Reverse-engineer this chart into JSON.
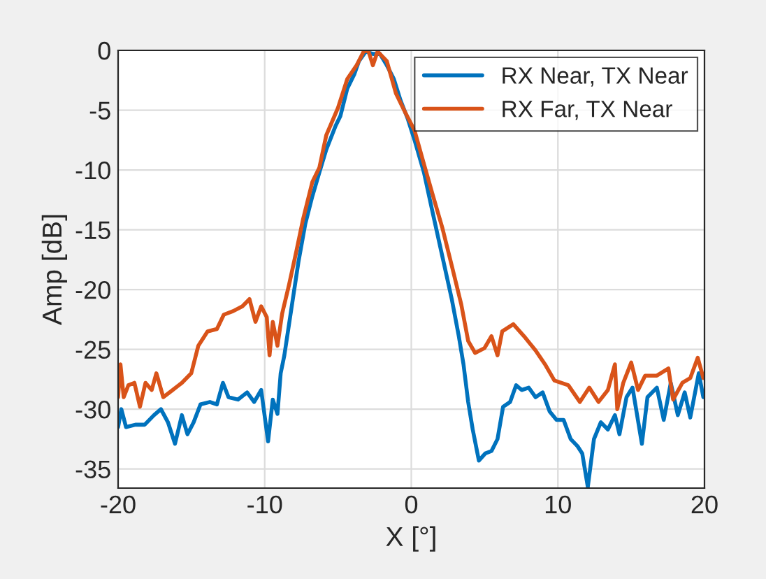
{
  "chart_data": {
    "type": "line",
    "xlabel": "X [°]",
    "ylabel": "Amp [dB]",
    "xlim": [
      -20,
      20
    ],
    "ylim": [
      -36.6,
      0
    ],
    "xticks": [
      -20,
      -10,
      0,
      10,
      20
    ],
    "yticks": [
      {
        "value": -35,
        "label": "-35"
      },
      {
        "value": -30,
        "label": "-30"
      },
      {
        "value": -25,
        "label": "-25"
      },
      {
        "value": -20,
        "label": "-20"
      },
      {
        "value": -15,
        "label": "-15"
      },
      {
        "value": -10,
        "label": "-10"
      },
      {
        "value": -5,
        "label": "-5"
      },
      {
        "value": 0,
        "label": "0"
      }
    ],
    "grid": true,
    "legend": "top right",
    "line_style": "solid",
    "marker": "none",
    "series": [
      {
        "name": "RX Near, TX Near",
        "color": "#0072bd",
        "x": [
          -20,
          -19.78,
          -19.46,
          -18.82,
          -18.19,
          -17.55,
          -17.08,
          -16.6,
          -16.12,
          -15.65,
          -15.27,
          -14.85,
          -14.38,
          -13.74,
          -13.26,
          -12.85,
          -12.47,
          -11.83,
          -11.2,
          -10.72,
          -10.24,
          -9.77,
          -9.45,
          -9.13,
          -8.91,
          -8.66,
          -8.18,
          -7.7,
          -7.23,
          -6.75,
          -6.27,
          -5.8,
          -5.16,
          -4.84,
          -4.37,
          -3.89,
          -3.57,
          -3.1,
          -2.62,
          -2.14,
          -1.67,
          -1.19,
          -0.73,
          -0.25,
          0.22,
          0.86,
          1.49,
          2.13,
          2.76,
          3.24,
          3.56,
          3.88,
          4.19,
          4.61,
          5.05,
          5.47,
          5.88,
          6.26,
          6.74,
          7.15,
          7.53,
          8.01,
          8.48,
          8.96,
          9.44,
          9.91,
          10.39,
          10.87,
          11.34,
          11.66,
          12.04,
          12.46,
          12.93,
          13.41,
          13.89,
          14.2,
          14.68,
          15.09,
          15.73,
          16.11,
          16.75,
          17.22,
          17.7,
          18.18,
          18.65,
          19.03,
          19.61,
          19.92
        ],
        "values": [
          -31.5,
          -30,
          -31.5,
          -31.3,
          -31.3,
          -30.5,
          -30,
          -31.1,
          -32.9,
          -30.5,
          -32.1,
          -31.1,
          -29.6,
          -29.4,
          -29.6,
          -27.8,
          -29,
          -29.2,
          -28.6,
          -29.4,
          -28.4,
          -32.7,
          -29.2,
          -30.4,
          -27,
          -25.5,
          -21.6,
          -17.7,
          -14.5,
          -12.2,
          -10.2,
          -8.3,
          -6.3,
          -5.5,
          -3.2,
          -2,
          -0.9,
          -0.1,
          -0.3,
          -0.3,
          -1.25,
          -2.4,
          -4.2,
          -5.7,
          -7.5,
          -10.2,
          -13.75,
          -17.3,
          -20.8,
          -23.9,
          -26.25,
          -29.4,
          -31.7,
          -34.3,
          -33.7,
          -33.5,
          -32.5,
          -29.8,
          -29.4,
          -28,
          -28.4,
          -28.2,
          -29,
          -28.6,
          -30.2,
          -30.9,
          -30.9,
          -32.5,
          -33.1,
          -33.7,
          -36.5,
          -32.5,
          -31.1,
          -31.7,
          -30.5,
          -32.1,
          -29,
          -28.2,
          -32.9,
          -29,
          -28.2,
          -30.9,
          -27.8,
          -30.5,
          -28.6,
          -30.7,
          -27,
          -29
        ]
      },
      {
        "name": "RX Far, TX Near",
        "color": "#d95319",
        "x": [
          -20,
          -19.84,
          -19.62,
          -19.3,
          -18.89,
          -18.51,
          -18.13,
          -17.71,
          -17.39,
          -16.92,
          -16.28,
          -15.65,
          -15.01,
          -14.53,
          -13.9,
          -13.26,
          -12.79,
          -12.15,
          -11.52,
          -11.04,
          -10.63,
          -10.24,
          -9.86,
          -9.67,
          -9.45,
          -9.13,
          -8.81,
          -8.34,
          -7.86,
          -7.38,
          -6.75,
          -6.27,
          -5.8,
          -5.0,
          -4.37,
          -3.73,
          -3.25,
          -2.94,
          -2.62,
          -2.3,
          -1.67,
          -1.05,
          -0.41,
          0.22,
          0.86,
          1.49,
          2.13,
          2.76,
          3.4,
          3.88,
          4.35,
          4.99,
          5.47,
          5.88,
          6.2,
          6.96,
          7.69,
          8.48,
          9.12,
          9.76,
          10.71,
          11.5,
          12.14,
          12.77,
          13.41,
          13.89,
          14.05,
          14.46,
          15.0,
          15.47,
          15.95,
          16.75,
          17.54,
          17.86,
          18.49,
          19.03,
          19.54,
          19.92
        ],
        "values": [
          -29,
          -26.25,
          -29,
          -28,
          -27.8,
          -29.8,
          -27.8,
          -28.4,
          -27,
          -29,
          -28.4,
          -27.8,
          -27,
          -24.7,
          -23.5,
          -23.3,
          -22.1,
          -21.8,
          -21.4,
          -20.8,
          -22.7,
          -21.4,
          -22.3,
          -25.5,
          -22.7,
          -24.7,
          -22,
          -19.6,
          -16.9,
          -14.1,
          -11,
          -9.8,
          -7.1,
          -4.8,
          -2.4,
          -1.25,
          -0.1,
          0,
          -1.25,
          -0.1,
          -0.9,
          -3.6,
          -5.2,
          -6.7,
          -9.5,
          -12.2,
          -14.9,
          -18,
          -21.2,
          -24.3,
          -25.3,
          -24.9,
          -23.9,
          -25.5,
          -23.5,
          -22.9,
          -23.9,
          -25.1,
          -26.25,
          -27.6,
          -28,
          -29.4,
          -28.2,
          -29.4,
          -28.4,
          -26.25,
          -30,
          -27.8,
          -26.1,
          -28.4,
          -27.2,
          -27.2,
          -26.6,
          -29.2,
          -27.8,
          -27.4,
          -25.7,
          -27.4
        ]
      }
    ]
  }
}
